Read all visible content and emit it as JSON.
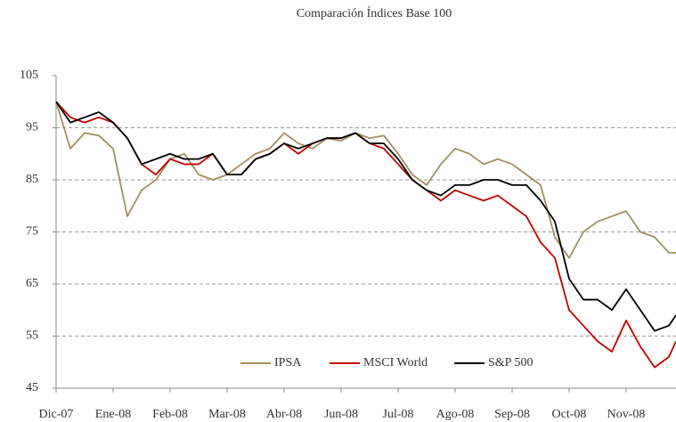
{
  "chart_data": {
    "type": "line",
    "title": "Comparación Índices Base 100",
    "x": [
      0,
      2,
      4,
      6,
      8,
      10,
      12,
      14,
      16,
      18,
      20,
      22,
      24,
      26,
      28,
      30,
      32,
      34,
      36,
      38,
      40,
      42,
      44,
      46,
      48,
      50,
      52,
      54,
      56,
      58,
      60,
      62,
      64,
      66,
      68,
      70,
      72,
      74,
      76,
      78,
      80,
      82,
      84,
      86,
      87
    ],
    "xlim": [
      0,
      87
    ],
    "xticks": [
      {
        "value": 0,
        "label": "Dic-07"
      },
      {
        "value": 8,
        "label": "Ene-08"
      },
      {
        "value": 16,
        "label": "Feb-08"
      },
      {
        "value": 24,
        "label": "Mar-08"
      },
      {
        "value": 32,
        "label": "Abr-08"
      },
      {
        "value": 40,
        "label": "Jun-08"
      },
      {
        "value": 48,
        "label": "Jul-08"
      },
      {
        "value": 56,
        "label": "Ago-08"
      },
      {
        "value": 64,
        "label": "Sep-08"
      },
      {
        "value": 72,
        "label": "Oct-08"
      },
      {
        "value": 80,
        "label": "Nov-08"
      }
    ],
    "ylim": [
      45,
      105
    ],
    "yticks": [
      45,
      55,
      65,
      75,
      85,
      95,
      105
    ],
    "grid": true,
    "legend": "bottom",
    "series": [
      {
        "name": "IPSA",
        "color": "#a0905e",
        "values": [
          100,
          91,
          94,
          93.5,
          91,
          78,
          83,
          85,
          89,
          90,
          86,
          85,
          86,
          88,
          90,
          91,
          94,
          92,
          91,
          93,
          92.5,
          94,
          93,
          93.5,
          90,
          86,
          84,
          88,
          91,
          90,
          88,
          89,
          88,
          86,
          84,
          74,
          70,
          75,
          77,
          78,
          79,
          75,
          74,
          71,
          71
        ]
      },
      {
        "name": "MSCI World",
        "color": "#c00000",
        "values": [
          100,
          97,
          96,
          97,
          96,
          93,
          88,
          86,
          89,
          88,
          88,
          90,
          86,
          86,
          89,
          90,
          92,
          90,
          92,
          93,
          93,
          94,
          92,
          91,
          88,
          85,
          83,
          81,
          83,
          82,
          81,
          82,
          80,
          78,
          73,
          70,
          60,
          57,
          54,
          52,
          58,
          53,
          49,
          51,
          54
        ]
      },
      {
        "name": "S&P 500",
        "color": "#000000",
        "values": [
          100,
          96,
          97,
          98,
          96,
          93,
          88,
          89,
          90,
          89,
          89,
          90,
          86,
          86,
          89,
          90,
          92,
          91,
          92,
          93,
          93,
          94,
          92,
          92,
          89,
          85,
          83,
          82,
          84,
          84,
          85,
          85,
          84,
          84,
          81,
          77,
          66,
          62,
          62,
          60,
          64,
          60,
          56,
          57,
          59
        ]
      }
    ]
  }
}
